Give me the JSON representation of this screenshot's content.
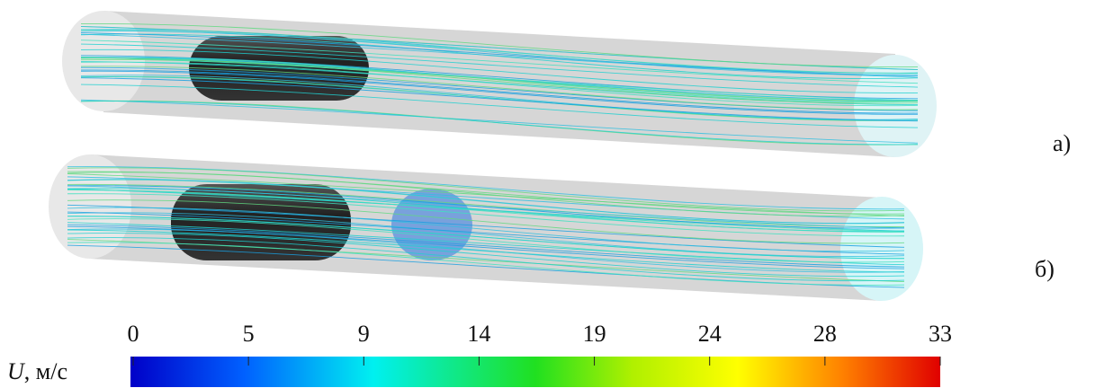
{
  "panels": [
    {
      "label": "а)"
    },
    {
      "label": "б)"
    }
  ],
  "colorbar": {
    "symbol": "U",
    "unit": ", м/с",
    "lim": [
      0,
      33
    ],
    "ticks": [
      0,
      {
        "value": 4.714,
        "label": "5"
      },
      {
        "value": 9.429,
        "label": "9"
      },
      {
        "value": 14.143,
        "label": "14"
      },
      {
        "value": 18.857,
        "label": "19"
      },
      {
        "value": 23.571,
        "label": "24"
      },
      {
        "value": 28.286,
        "label": "28"
      },
      33
    ]
  }
}
